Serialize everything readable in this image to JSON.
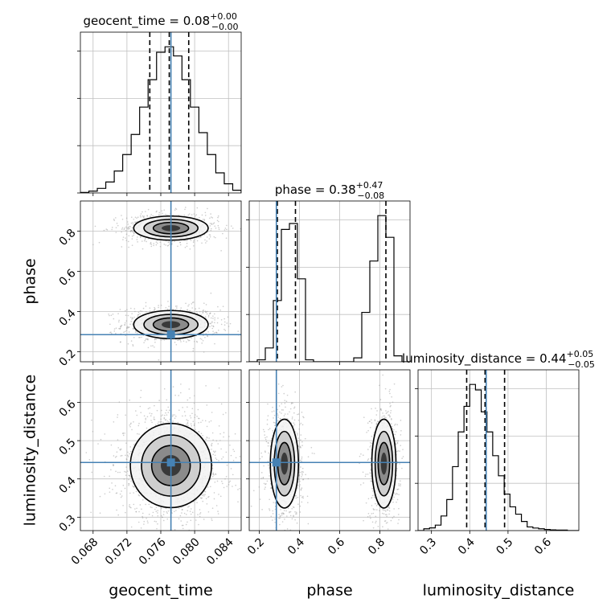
{
  "chart_data": {
    "type": "corner",
    "parameters": [
      "geocent_time",
      "phase",
      "luminosity_distance"
    ],
    "truths": {
      "geocent_time": 0.0772,
      "phase": 0.285,
      "luminosity_distance": 0.443
    },
    "colors": {
      "truth": "#4682b4",
      "hist": "#000000",
      "grid": "#c0c0c0",
      "scatter": "#9a9a9a"
    },
    "grid": true,
    "axes": {
      "geocent_time": {
        "range": [
          0.0665,
          0.0855
        ],
        "ticks": [
          "0.068",
          "0.072",
          "0.076",
          "0.080",
          "0.084"
        ],
        "tick_values": [
          0.068,
          0.072,
          0.076,
          0.08,
          0.084
        ]
      },
      "phase": {
        "range": [
          0.15,
          0.95
        ],
        "ticks": [
          "0.2",
          "0.4",
          "0.6",
          "0.8"
        ],
        "tick_values": [
          0.2,
          0.4,
          0.6,
          0.8
        ]
      },
      "luminosity_distance": {
        "range": [
          0.265,
          0.685
        ],
        "ticks": [
          "0.3",
          "0.4",
          "0.5",
          "0.6"
        ],
        "tick_values": [
          0.3,
          0.4,
          0.5,
          0.6
        ]
      }
    },
    "diagonal": [
      {
        "param": "geocent_time",
        "title": {
          "text": "geocent_time = 0.08",
          "sup": "+0.00",
          "sub": "−0.00"
        },
        "quantiles": [
          0.0747,
          0.077,
          0.0793
        ],
        "bin_edges": [
          0.0665,
          0.0675,
          0.0685,
          0.0695,
          0.0705,
          0.0715,
          0.0725,
          0.0735,
          0.0745,
          0.0755,
          0.0765,
          0.0775,
          0.0785,
          0.0795,
          0.0805,
          0.0815,
          0.0825,
          0.0835,
          0.0845,
          0.0855
        ],
        "counts": [
          0.3,
          1.0,
          2.5,
          6,
          12,
          21,
          32,
          47,
          62,
          77,
          80,
          75,
          62,
          47,
          33,
          21,
          11,
          5,
          1.5
        ]
      },
      {
        "param": "phase",
        "title": {
          "text": "phase = 0.38",
          "sup": "+0.47",
          "sub": "−0.08"
        },
        "quantiles": [
          0.29,
          0.38,
          0.83
        ],
        "bin_edges": [
          0.15,
          0.19,
          0.23,
          0.27,
          0.31,
          0.35,
          0.39,
          0.43,
          0.47,
          0.51,
          0.55,
          0.59,
          0.63,
          0.67,
          0.71,
          0.75,
          0.79,
          0.83,
          0.87,
          0.91,
          0.95
        ],
        "counts": [
          0,
          1,
          7,
          31,
          67,
          70,
          42,
          1,
          0,
          0,
          0,
          0,
          0,
          2,
          25,
          51,
          74,
          63,
          3,
          0
        ]
      },
      {
        "param": "luminosity_distance",
        "title": {
          "text": "luminosity_distance = 0.44",
          "sup": "+0.05",
          "sub": "−0.05"
        },
        "quantiles": [
          0.392,
          0.44,
          0.491
        ],
        "bin_edges": [
          0.265,
          0.28,
          0.295,
          0.31,
          0.325,
          0.34,
          0.355,
          0.37,
          0.385,
          0.4,
          0.415,
          0.43,
          0.445,
          0.46,
          0.475,
          0.49,
          0.505,
          0.52,
          0.535,
          0.55,
          0.565,
          0.58,
          0.595,
          0.61,
          0.625,
          0.64,
          0.655,
          0.67,
          0.685
        ],
        "counts": [
          0,
          1,
          1.5,
          3,
          8,
          17,
          35,
          54,
          68,
          80,
          77,
          65,
          54,
          41,
          30,
          20,
          13,
          9,
          5,
          2,
          1.4,
          1,
          0.6,
          0.4,
          0.3,
          0.3,
          0,
          0
        ]
      }
    ],
    "pairs": [
      {
        "x": "geocent_time",
        "y": "phase",
        "modes": [
          {
            "cx": 0.0772,
            "cy": 0.335,
            "sx": 0.0022,
            "sy": 0.035,
            "n": 900
          },
          {
            "cx": 0.0772,
            "cy": 0.815,
            "sx": 0.0022,
            "sy": 0.03,
            "n": 800
          }
        ]
      },
      {
        "x": "geocent_time",
        "y": "luminosity_distance",
        "modes": [
          {
            "cx": 0.0772,
            "cy": 0.435,
            "sx": 0.0024,
            "sy": 0.055,
            "n": 1500
          }
        ]
      },
      {
        "x": "phase",
        "y": "luminosity_distance",
        "modes": [
          {
            "cx": 0.325,
            "cy": 0.44,
            "sx": 0.035,
            "sy": 0.058,
            "n": 800
          },
          {
            "cx": 0.82,
            "cy": 0.44,
            "sx": 0.03,
            "sy": 0.058,
            "n": 750
          }
        ]
      }
    ]
  }
}
